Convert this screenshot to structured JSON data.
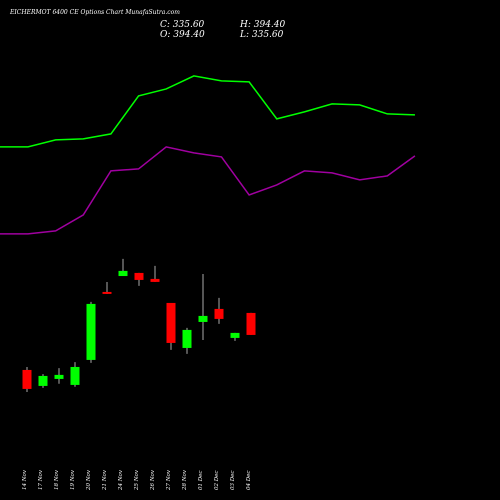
{
  "chart_data": {
    "type": "candlestick",
    "title": "EICHERMOT 6400 CE Options Chart MunafaSutra.com",
    "header": {
      "close": "C: 335.60",
      "high": "H: 394.40",
      "open": "O: 394.40",
      "low": "L: 335.60"
    },
    "categories": [
      "14 Nov",
      "17 Nov",
      "18 Nov",
      "19 Nov",
      "20 Nov",
      "21 Nov",
      "24 Nov",
      "25 Nov",
      "26 Nov",
      "27 Nov",
      "28 Nov",
      "01 Dec",
      "02 Dec",
      "03 Dec",
      "04 Dec"
    ],
    "open": [
      242.0,
      199.3,
      218.0,
      202.0,
      268.8,
      450.5,
      493.0,
      501.3,
      485.3,
      421.1,
      300.8,
      370.3,
      405.1,
      327.6,
      394.4
    ],
    "high": [
      250.0,
      231.0,
      247.0,
      263.0,
      423.8,
      477.0,
      538.7,
      501.3,
      520.0,
      421.1,
      354.3,
      498.6,
      434.5,
      341.0,
      394.4
    ],
    "low": [
      183.0,
      194.0,
      205.0,
      197.0,
      260.8,
      445.0,
      493.0,
      466.6,
      477.3,
      295.5,
      284.8,
      322.2,
      365.0,
      319.6,
      335.6
    ],
    "close": [
      191.3,
      226.0,
      228.8,
      250.0,
      418.5,
      445.2,
      506.7,
      482.6,
      477.3,
      314.2,
      349.0,
      386.4,
      378.4,
      341.0,
      335.6
    ],
    "up_color": "#00ff00",
    "down_color": "#ff0000",
    "lines": [
      {
        "color": "#00ff00",
        "values": [
          838.1,
          856.8,
          859.5,
          872.9,
          974.4,
          993.1,
          1027.9,
          1014.5,
          1011.9,
          913.0,
          931.7,
          953.1,
          950.4,
          926.3,
          923.7
        ]
      },
      {
        "color": "#a000a0",
        "values": [
          605.6,
          613.6,
          656.4,
          774.0,
          779.3,
          838.1,
          822.1,
          811.4,
          709.8,
          736.5,
          774.0,
          768.6,
          749.9,
          760.6,
          814.1
        ]
      }
    ],
    "ylim": [
      0,
      1200
    ]
  }
}
